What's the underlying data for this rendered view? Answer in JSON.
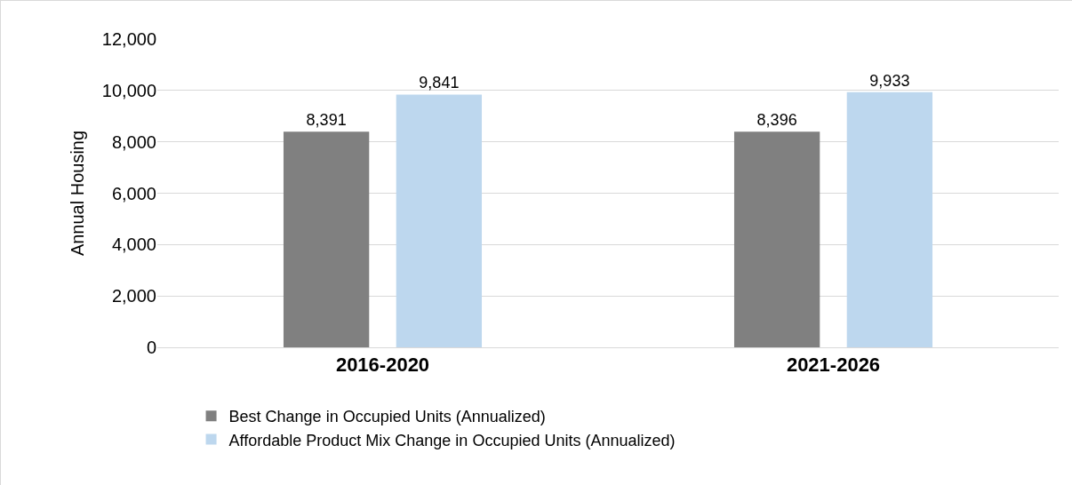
{
  "chart_data": {
    "type": "bar",
    "ylabel": "Annual Housing",
    "categories": [
      "2016-2020",
      "2021-2026"
    ],
    "series": [
      {
        "name": "Best Change in Occupied Units (Annualized)",
        "color": "#808080",
        "values": [
          8391,
          8396
        ],
        "value_labels": [
          "8,391",
          "8,396"
        ]
      },
      {
        "name": "Affordable Product Mix Change in Occupied Units (Annualized)",
        "color": "#bdd7ee",
        "values": [
          9841,
          9933
        ],
        "value_labels": [
          "9,841",
          "9,933"
        ]
      }
    ],
    "ylim": [
      0,
      12000
    ],
    "yticks": [
      {
        "value": 0,
        "label": "0"
      },
      {
        "value": 2000,
        "label": "2,000"
      },
      {
        "value": 4000,
        "label": "4,000"
      },
      {
        "value": 6000,
        "label": "6,000"
      },
      {
        "value": 8000,
        "label": "8,000"
      },
      {
        "value": 10000,
        "label": "10,000"
      },
      {
        "value": 12000,
        "label": "12,000"
      }
    ],
    "grid": "y",
    "legend": "bottom"
  }
}
